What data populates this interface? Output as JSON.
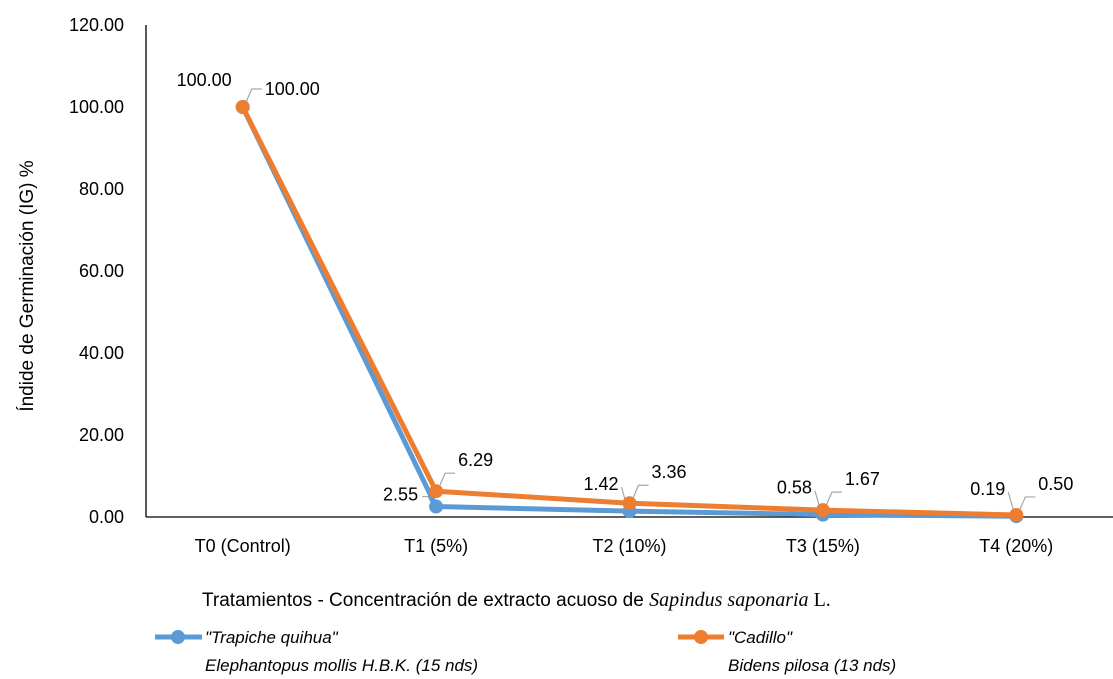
{
  "chart_data": {
    "type": "line",
    "categories": [
      "T0 (Control)",
      "T1 (5%)",
      "T2 (10%)",
      "T3 (15%)",
      "T4 (20%)"
    ],
    "series": [
      {
        "name_line1": "\"Trapiche quihua\"",
        "name_line2": "Elephantopus mollis H.B.K. (15 nds)",
        "color": "#5B9BD5",
        "values": [
          100.0,
          2.55,
          1.42,
          0.58,
          0.19
        ],
        "labels": [
          "100.00",
          "2.55",
          "1.42",
          "0.58",
          "0.19"
        ]
      },
      {
        "name_line1": "\"Cadillo\"",
        "name_line2": "Bidens pilosa (13 nds)",
        "color": "#ED7D31",
        "values": [
          100.0,
          6.29,
          3.36,
          1.67,
          0.5
        ],
        "labels": [
          "100.00",
          "6.29",
          "3.36",
          "1.67",
          "0.50"
        ]
      }
    ],
    "ylim": [
      0,
      120
    ],
    "yticks": [
      "0.00",
      "20.00",
      "40.00",
      "60.00",
      "80.00",
      "100.00",
      "120.00"
    ],
    "ylabel": "Índide de Germinación (IG) %",
    "xlabel_prefix": "Tratamientos - Concentración de extracto acuoso de ",
    "xlabel_italic": "Sapindus saponaria",
    "xlabel_suffix": " L.",
    "grid": false,
    "legend_position": "bottom"
  }
}
